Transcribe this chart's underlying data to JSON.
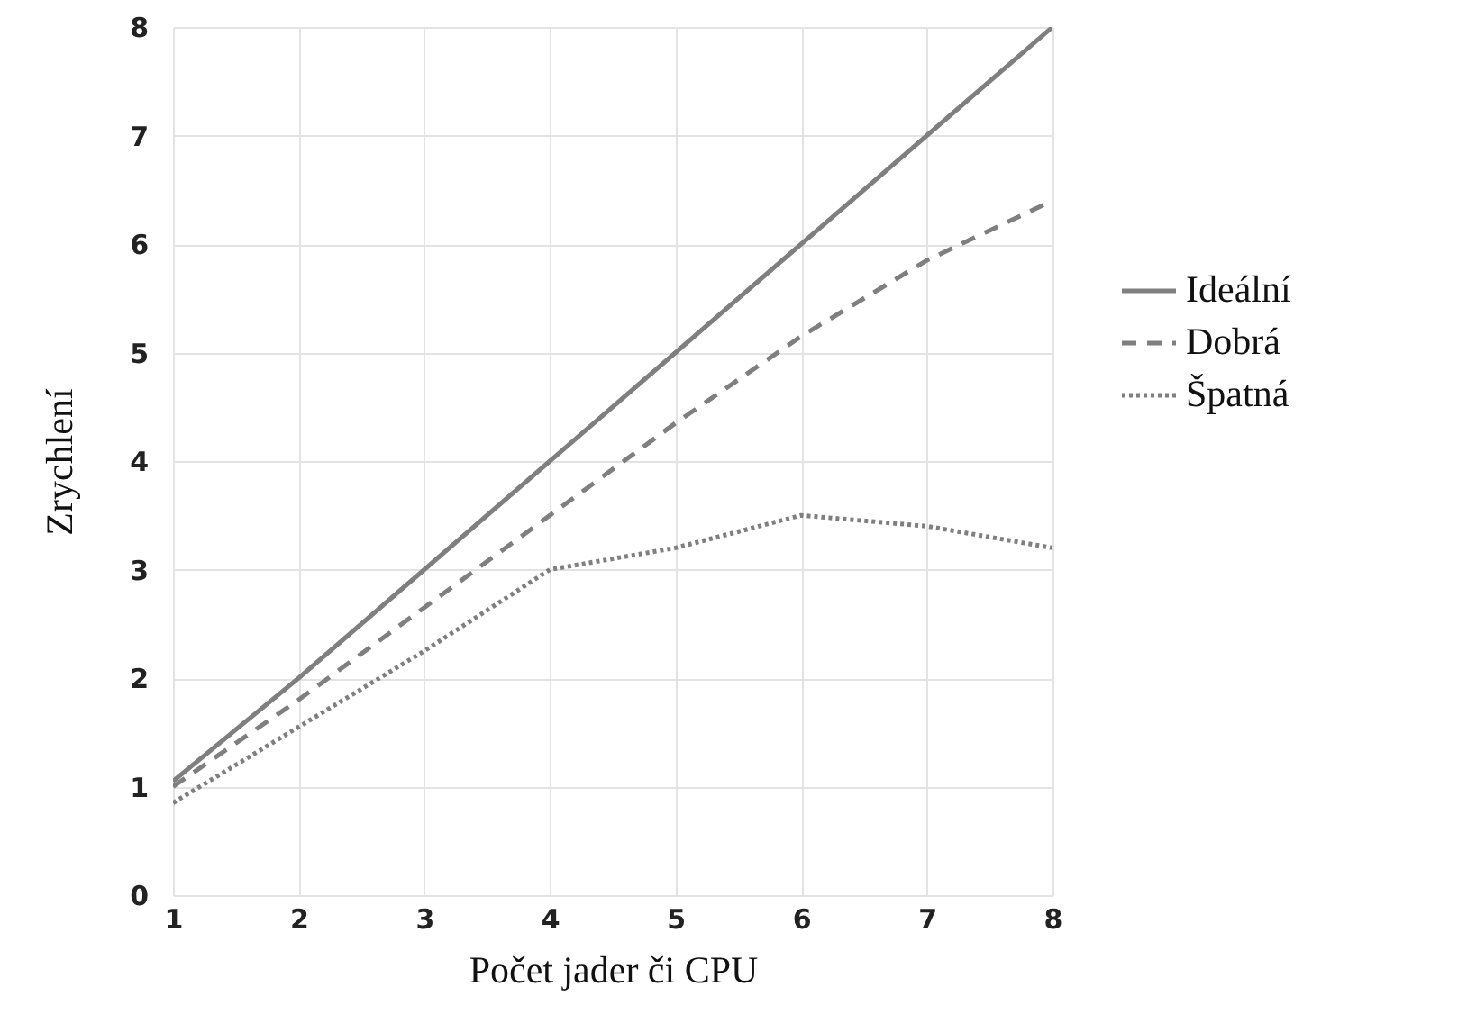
{
  "chart_data": {
    "type": "line",
    "xlabel": "Počet jader či CPU",
    "ylabel": "Zrychlení",
    "x": [
      1,
      2,
      3,
      4,
      5,
      6,
      7,
      8
    ],
    "series": [
      {
        "name": "Ideální",
        "color": "#7f7f7f",
        "line_style": "solid",
        "values": [
          1.05,
          2,
          3,
          4,
          5,
          6,
          7,
          8
        ]
      },
      {
        "name": "Dobrá",
        "color": "#7f7f7f",
        "line_style": "dashed",
        "values": [
          1.0,
          1.8,
          2.65,
          3.5,
          4.35,
          5.15,
          5.85,
          6.4
        ]
      },
      {
        "name": "Špatná",
        "color": "#7f7f7f",
        "line_style": "dotted",
        "values": [
          0.85,
          1.55,
          2.25,
          3.0,
          3.2,
          3.5,
          3.4,
          3.2
        ]
      }
    ],
    "xlim": [
      1,
      8
    ],
    "xticks": [
      1,
      2,
      3,
      4,
      5,
      6,
      7,
      8
    ],
    "ylim": [
      0,
      8
    ],
    "yticks": [
      0,
      1,
      2,
      3,
      4,
      5,
      6,
      7,
      8
    ],
    "grid": true,
    "legend": "right",
    "marker": "none"
  }
}
